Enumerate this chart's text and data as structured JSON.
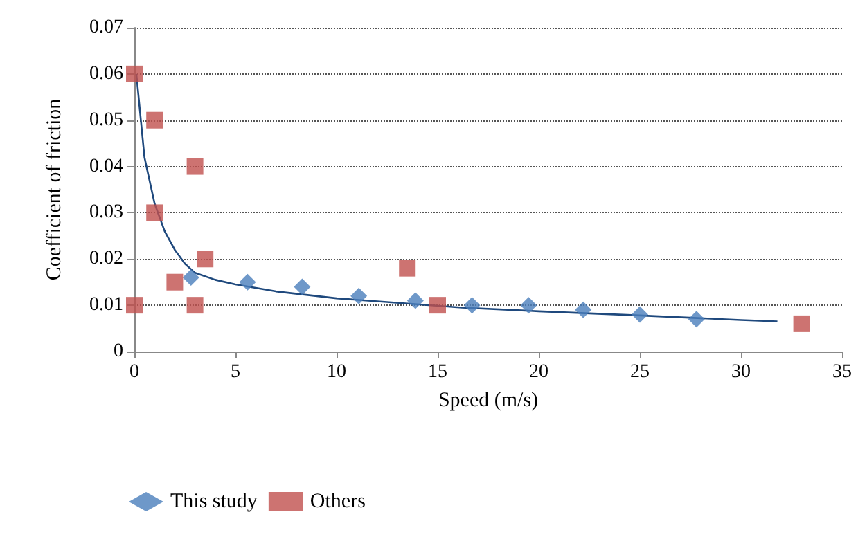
{
  "chart_data": {
    "type": "scatter",
    "xlabel": "Speed (m/s)",
    "ylabel": "Coefficient of friction",
    "xlim": [
      0,
      35
    ],
    "xticks": [
      0,
      5,
      10,
      15,
      20,
      25,
      30,
      35
    ],
    "ylim": [
      0,
      0.07
    ],
    "yticks": [
      0,
      0.01,
      0.02,
      0.03,
      0.04,
      0.05,
      0.06,
      0.07
    ],
    "grid": "y",
    "legend": "bottom left",
    "series": [
      {
        "name": "This study",
        "color": "#4a7ebb",
        "marker": "diamond",
        "x": [
          2.8,
          5.6,
          8.3,
          11.1,
          13.9,
          16.7,
          19.5,
          22.2,
          25,
          27.8
        ],
        "values": [
          0.016,
          0.015,
          0.014,
          0.012,
          0.011,
          0.01,
          0.01,
          0.009,
          0.008,
          0.007
        ]
      },
      {
        "name": "Others",
        "color": "#c0504d",
        "marker": "square",
        "x": [
          0,
          0,
          1,
          1,
          2,
          3,
          3,
          3.5,
          13.5,
          15,
          33
        ],
        "values": [
          0.06,
          0.01,
          0.05,
          0.03,
          0.015,
          0.04,
          0.01,
          0.02,
          0.018,
          0.01,
          0.006
        ]
      },
      {
        "type": "line",
        "color": "#1f497d",
        "line_style": "solid",
        "x": [
          0.1,
          0.5,
          1,
          1.5,
          2,
          2.5,
          3,
          4,
          5,
          7,
          10,
          16.2,
          20,
          25,
          30,
          31.8
        ],
        "values": [
          0.06,
          0.042,
          0.032,
          0.026,
          0.022,
          0.019,
          0.017,
          0.0155,
          0.0145,
          0.013,
          0.0115,
          0.0095,
          0.0087,
          0.0078,
          0.0068,
          0.0065
        ]
      }
    ]
  }
}
